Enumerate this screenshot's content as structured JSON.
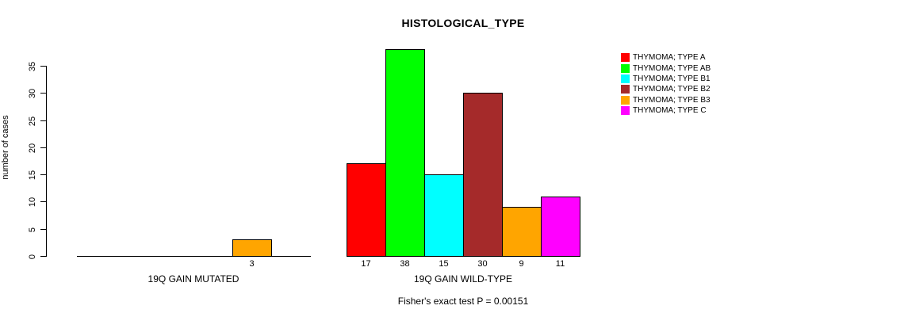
{
  "chart_data": {
    "type": "bar",
    "title": "HISTOLOGICAL_TYPE",
    "ylabel": "number of cases",
    "xlabel": "",
    "groups": [
      "19Q GAIN MUTATED",
      "19Q GAIN WILD-TYPE"
    ],
    "series": [
      {
        "name": "THYMOMA; TYPE A",
        "color": "#FF0000",
        "values": [
          0,
          17
        ]
      },
      {
        "name": "THYMOMA; TYPE AB",
        "color": "#00FF00",
        "values": [
          0,
          38
        ]
      },
      {
        "name": "THYMOMA; TYPE B1",
        "color": "#00FFFF",
        "values": [
          0,
          15
        ]
      },
      {
        "name": "THYMOMA; TYPE B2",
        "color": "#A52A2A",
        "values": [
          0,
          30
        ]
      },
      {
        "name": "THYMOMA; TYPE B3",
        "color": "#FFA500",
        "values": [
          3,
          9
        ]
      },
      {
        "name": "THYMOMA; TYPE C",
        "color": "#FF00FF",
        "values": [
          0,
          11
        ]
      }
    ],
    "yticks": [
      0,
      5,
      10,
      15,
      20,
      25,
      30,
      35
    ],
    "ylim": [
      0,
      35
    ],
    "grid": false,
    "legend_position": "right",
    "annotation": "Fisher's exact test P = 0.00151"
  }
}
